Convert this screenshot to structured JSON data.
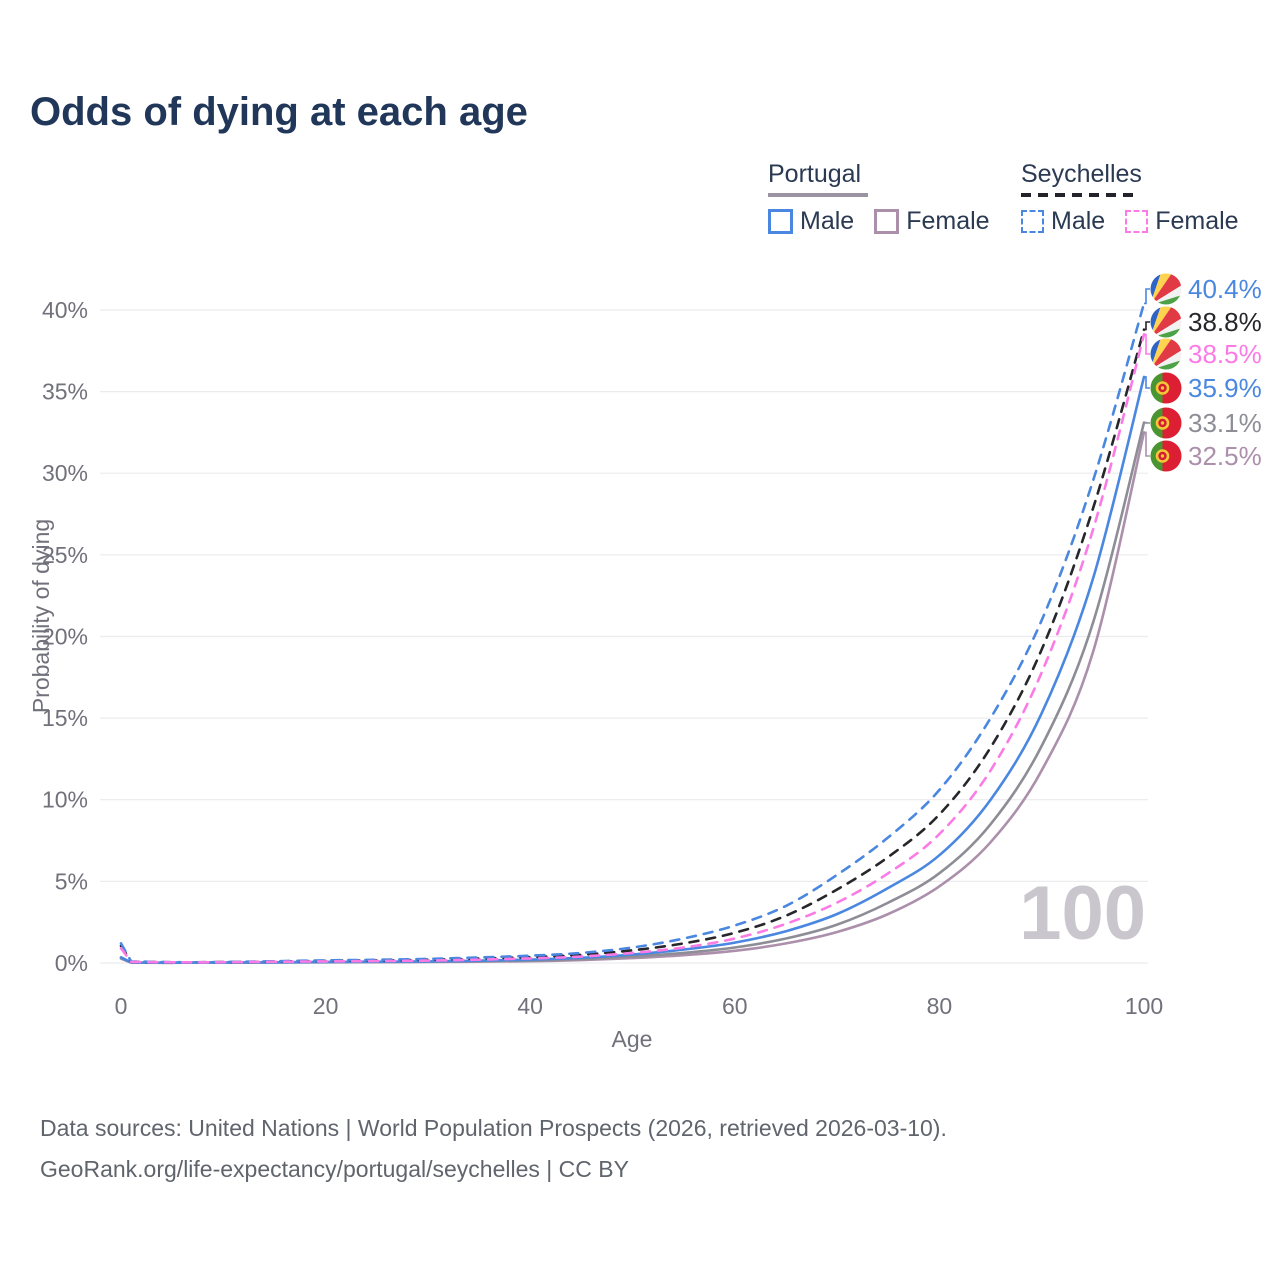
{
  "title": "Odds of dying at each age",
  "legend": {
    "groups": [
      {
        "label": "Portugal",
        "line_style": "solid",
        "underline_color": "#9a93a2",
        "items": [
          {
            "label": "Male",
            "color": "#4a87e0"
          },
          {
            "label": "Female",
            "color": "#ab8fab"
          }
        ]
      },
      {
        "label": "Seychelles",
        "line_style": "dashed",
        "underline_color": "#232329",
        "items": [
          {
            "label": "Male",
            "color": "#4a87e0"
          },
          {
            "label": "Female",
            "color": "#fb7be6"
          }
        ]
      }
    ]
  },
  "watermark": "100",
  "footer": {
    "line1": "Data sources: United Nations | World Population Prospects (2026, retrieved 2026-03-10).",
    "line2": "GeoRank.org/life-expectancy/portugal/seychelles | CC BY"
  },
  "colors": {
    "male_blue": "#4a87e0",
    "seychelles_female_pink": "#fb7be6",
    "seychelles_all_black": "#26262b",
    "portugal_all_gray": "#8d8d96",
    "portugal_female_mauve": "#ab8fab",
    "grid": "#ececef",
    "axis_text": "#71717b",
    "title_navy": "#21375a",
    "watermark_gray": "#c9c6cd"
  },
  "chart_data": {
    "type": "line",
    "title": "Odds of dying at each age",
    "xlabel": "Age",
    "ylabel": "Probability of dying",
    "xlim": [
      0,
      100
    ],
    "ylim_pct": [
      0,
      42
    ],
    "xticks": [
      0,
      20,
      40,
      60,
      80,
      100
    ],
    "yticks_pct": [
      0,
      5,
      10,
      15,
      20,
      25,
      30,
      35,
      40
    ],
    "grid": "horizontal-only",
    "legend_position": "top-right",
    "ages": [
      0,
      1,
      5,
      10,
      20,
      30,
      40,
      45,
      50,
      55,
      60,
      65,
      70,
      75,
      80,
      85,
      90,
      95,
      100
    ],
    "series": [
      {
        "id": "seychelles-male",
        "country": "Seychelles",
        "sex": "Male",
        "style": "dashed",
        "color": "#4a87e0",
        "label_color": "#4a87e0",
        "flag": "seychelles",
        "end_label": "40.4%",
        "values_pct": [
          1.2,
          0.09,
          0.05,
          0.06,
          0.16,
          0.25,
          0.45,
          0.62,
          0.95,
          1.5,
          2.3,
          3.5,
          5.4,
          7.7,
          10.6,
          15.0,
          21.0,
          29.5,
          40.4
        ]
      },
      {
        "id": "seychelles-all",
        "country": "Seychelles",
        "sex": "Both",
        "style": "dashed",
        "color": "#26262b",
        "label_color": "#26262b",
        "flag": "seychelles",
        "end_label": "38.8%",
        "values_pct": [
          1.05,
          0.08,
          0.045,
          0.055,
          0.13,
          0.2,
          0.36,
          0.5,
          0.78,
          1.2,
          1.85,
          2.9,
          4.5,
          6.5,
          9.1,
          13.2,
          19.2,
          27.8,
          38.8
        ]
      },
      {
        "id": "seychelles-female",
        "country": "Seychelles",
        "sex": "Female",
        "style": "dashed",
        "color": "#fb7be6",
        "label_color": "#fb7be6",
        "flag": "seychelles",
        "end_label": "38.5%",
        "values_pct": [
          0.9,
          0.07,
          0.04,
          0.05,
          0.1,
          0.15,
          0.28,
          0.4,
          0.62,
          0.95,
          1.5,
          2.4,
          3.7,
          5.5,
          7.9,
          11.8,
          17.8,
          26.5,
          38.5
        ]
      },
      {
        "id": "portugal-male",
        "country": "Portugal",
        "sex": "Male",
        "style": "solid",
        "color": "#4a87e0",
        "label_color": "#4a87e0",
        "flag": "portugal",
        "end_label": "35.9%",
        "values_pct": [
          0.35,
          0.03,
          0.02,
          0.025,
          0.07,
          0.1,
          0.2,
          0.32,
          0.52,
          0.82,
          1.25,
          1.95,
          3.0,
          4.6,
          6.6,
          10.0,
          15.3,
          23.5,
          35.9
        ]
      },
      {
        "id": "portugal-all",
        "country": "Portugal",
        "sex": "Both",
        "style": "solid",
        "color": "#8d8d96",
        "label_color": "#8d8d96",
        "flag": "portugal",
        "end_label": "33.1%",
        "values_pct": [
          0.3,
          0.025,
          0.015,
          0.02,
          0.05,
          0.08,
          0.15,
          0.24,
          0.4,
          0.62,
          0.95,
          1.5,
          2.35,
          3.7,
          5.5,
          8.5,
          13.3,
          20.8,
          33.1
        ]
      },
      {
        "id": "portugal-female",
        "country": "Portugal",
        "sex": "Female",
        "style": "solid",
        "color": "#ab8fab",
        "label_color": "#ab8fab",
        "flag": "portugal",
        "end_label": "32.5%",
        "values_pct": [
          0.27,
          0.02,
          0.012,
          0.016,
          0.04,
          0.06,
          0.11,
          0.18,
          0.3,
          0.48,
          0.75,
          1.2,
          1.9,
          3.0,
          4.7,
          7.4,
          11.8,
          19.0,
          32.5
        ]
      }
    ]
  }
}
